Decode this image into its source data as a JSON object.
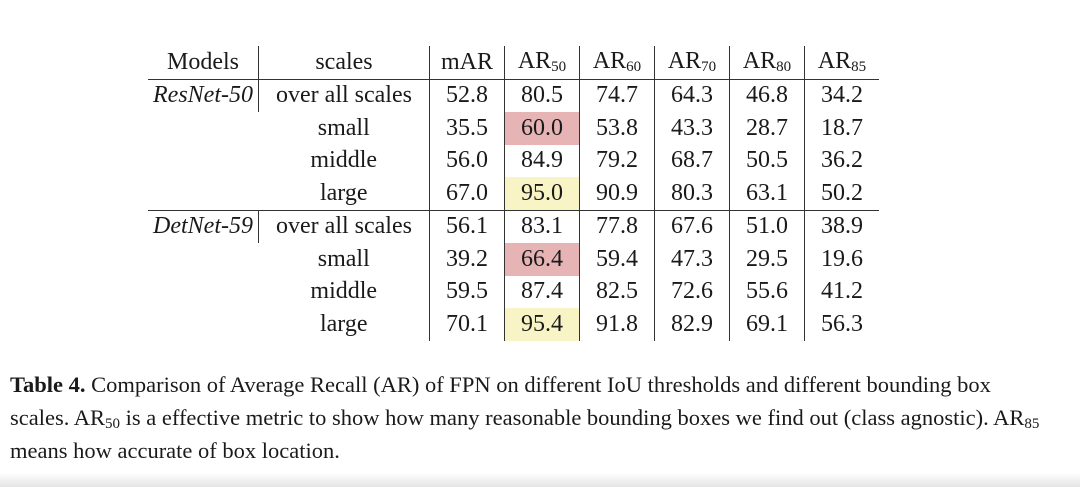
{
  "table": {
    "header": [
      "Models",
      "scales",
      "mAR",
      {
        "base": "AR",
        "sub": "50"
      },
      {
        "base": "AR",
        "sub": "60"
      },
      {
        "base": "AR",
        "sub": "70"
      },
      {
        "base": "AR",
        "sub": "80"
      },
      {
        "base": "AR",
        "sub": "85"
      }
    ],
    "groups": [
      {
        "model": "ResNet-50",
        "rows": [
          {
            "scale": "over all scales",
            "values": [
              "52.8",
              "80.5",
              "74.7",
              "64.3",
              "46.8",
              "34.2"
            ]
          },
          {
            "scale": "small",
            "values": [
              "35.5",
              "60.0",
              "53.8",
              "43.3",
              "28.7",
              "18.7"
            ]
          },
          {
            "scale": "middle",
            "values": [
              "56.0",
              "84.9",
              "79.2",
              "68.7",
              "50.5",
              "36.2"
            ]
          },
          {
            "scale": "large",
            "values": [
              "67.0",
              "95.0",
              "90.9",
              "80.3",
              "63.1",
              "50.2"
            ]
          }
        ]
      },
      {
        "model": "DetNet-59",
        "rows": [
          {
            "scale": "over all scales",
            "values": [
              "56.1",
              "83.1",
              "77.8",
              "67.6",
              "51.0",
              "38.9"
            ]
          },
          {
            "scale": "small",
            "values": [
              "39.2",
              "66.4",
              "59.4",
              "47.3",
              "29.5",
              "19.6"
            ]
          },
          {
            "scale": "middle",
            "values": [
              "59.5",
              "87.4",
              "82.5",
              "72.6",
              "55.6",
              "41.2"
            ]
          },
          {
            "scale": "large",
            "values": [
              "70.1",
              "95.4",
              "91.8",
              "82.9",
              "69.1",
              "56.3"
            ]
          }
        ]
      }
    ]
  },
  "caption": {
    "label": "Table 4.",
    "segments": [
      {
        "text": " Comparison of Average Recall (AR) of FPN on different IoU thresholds and different bounding box scales. AR"
      },
      {
        "sub": "50"
      },
      {
        "text": " is a effective metric to show how many reasonable bounding boxes we find out (class agnostic). AR"
      },
      {
        "sub": "85"
      },
      {
        "text": " means how accurate of box location."
      }
    ]
  }
}
